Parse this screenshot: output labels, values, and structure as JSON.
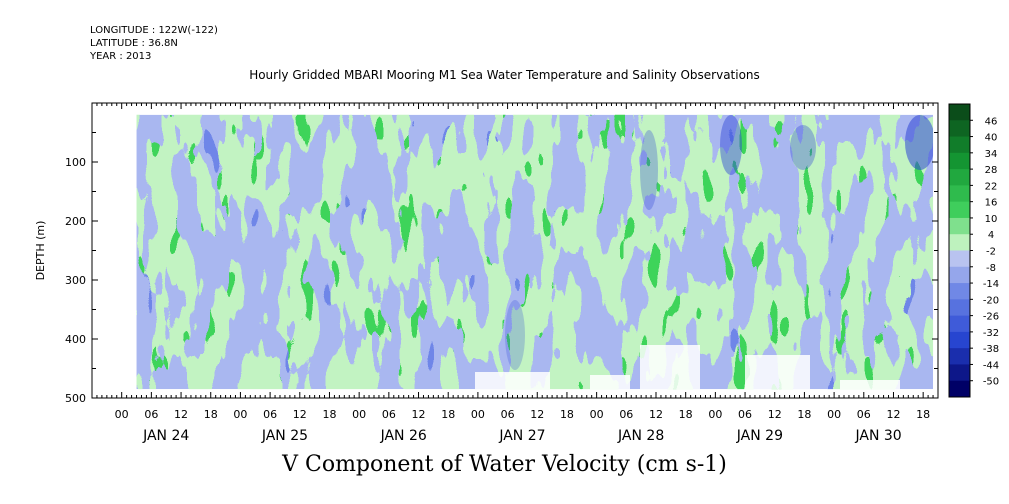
{
  "header": {
    "longitude": "LONGITUDE : 122W(-122)",
    "latitude": "LATITUDE : 36.8N",
    "year": "YEAR : 2013"
  },
  "colors": {
    "strong_negative": "#000066",
    "negative": "#2f46d6",
    "weak_negative": "#a9b7f0",
    "weak_positive": "#b8f2b8",
    "positive": "#22cc44",
    "strong_positive": "#0b4d1a",
    "missing": "#ffffff"
  },
  "chart_data": {
    "type": "heatmap",
    "title": "Hourly Gridded MBARI Mooring M1 Sea Water Temperature and Salinity Observations",
    "xlabel": "V Component of Water Velocity (cm s-1)",
    "ylabel": "DEPTH (m)",
    "x_range": [
      "2013-01-23T18:00",
      "2013-01-30T21:00"
    ],
    "y_range": [
      0,
      500
    ],
    "y_inverted": true,
    "y_ticks": [
      100,
      200,
      300,
      400,
      500
    ],
    "hour_ticks": [
      "00",
      "06",
      "12",
      "18",
      "00",
      "06",
      "12",
      "18",
      "00",
      "06",
      "12",
      "18",
      "00",
      "06",
      "12",
      "18",
      "00",
      "06",
      "12",
      "18",
      "00",
      "06",
      "12",
      "18",
      "00",
      "06",
      "12",
      "18"
    ],
    "day_labels": [
      "JAN 24",
      "JAN 25",
      "JAN 26",
      "JAN 27",
      "JAN 28",
      "JAN 29",
      "JAN 30"
    ],
    "colorbar_labels": [
      "46",
      "40",
      "34",
      "28",
      "22",
      "16",
      "10",
      "4",
      "-2",
      "-8",
      "-14",
      "-20",
      "-26",
      "-32",
      "-38",
      "-44",
      "-50"
    ],
    "colorbar_range": [
      -50,
      50
    ],
    "data_depth_range": [
      20,
      485
    ],
    "data_time_range": [
      "2013-01-24T03:00",
      "2013-01-30T20:00"
    ]
  }
}
